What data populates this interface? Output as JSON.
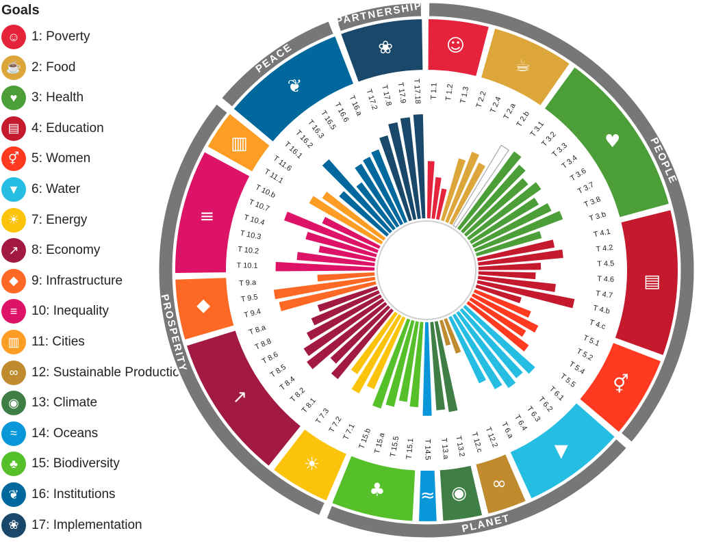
{
  "legend": {
    "title": "Goals",
    "goals": [
      {
        "label": "1: Poverty",
        "color": "#e5243b",
        "icon": "people-icon"
      },
      {
        "label": "2: Food",
        "color": "#dda63a",
        "icon": "bowl-icon"
      },
      {
        "label": "3: Health",
        "color": "#4c9f38",
        "icon": "heartbeat-icon"
      },
      {
        "label": "4: Education",
        "color": "#c5192d",
        "icon": "book-icon"
      },
      {
        "label": "5: Women",
        "color": "#ff3a21",
        "icon": "gender-icon"
      },
      {
        "label": "6: Water",
        "color": "#26bde2",
        "icon": "water-drop-icon"
      },
      {
        "label": "7: Energy",
        "color": "#fcc30b",
        "icon": "sun-icon"
      },
      {
        "label": "8: Economy",
        "color": "#a21942",
        "icon": "growth-chart-icon"
      },
      {
        "label": "9: Infrastructure",
        "color": "#fd6925",
        "icon": "cubes-icon"
      },
      {
        "label": "10: Inequality",
        "color": "#dd1367",
        "icon": "equal-icon"
      },
      {
        "label": "11: Cities",
        "color": "#fd9d24",
        "icon": "buildings-icon"
      },
      {
        "label": "12: Sustainable Production",
        "color": "#bf8b2e",
        "icon": "infinity-icon"
      },
      {
        "label": "13: Climate",
        "color": "#3f7e44",
        "icon": "eye-globe-icon"
      },
      {
        "label": "14: Oceans",
        "color": "#0a97d9",
        "icon": "fish-icon"
      },
      {
        "label": "15: Biodiversity",
        "color": "#56c02b",
        "icon": "tree-icon"
      },
      {
        "label": "16: Institutions",
        "color": "#00689d",
        "icon": "dove-icon"
      },
      {
        "label": "17: Implementation",
        "color": "#19486a",
        "icon": "flower-icon"
      }
    ]
  },
  "chart_data": {
    "type": "radial-bar",
    "title": "",
    "pillars": [
      {
        "label": "PEOPLE",
        "goals": [
          1,
          2,
          3,
          4,
          5
        ]
      },
      {
        "label": "PLANET",
        "goals": [
          6,
          12,
          13,
          14,
          15
        ]
      },
      {
        "label": "PROSPERITY",
        "goals": [
          7,
          8,
          9,
          10,
          11
        ]
      },
      {
        "label": "PEACE",
        "goals": [
          16
        ]
      },
      {
        "label": "PARTNERSHIP",
        "goals": [
          17
        ]
      }
    ],
    "targets": [
      {
        "label": "T 1.1",
        "goal": 1,
        "value": 0.55
      },
      {
        "label": "T 1.2",
        "goal": 1,
        "value": 0.4
      },
      {
        "label": "T 1.3",
        "goal": 1,
        "value": 0.3
      },
      {
        "label": "T 2.2",
        "goal": 2,
        "value": 0.62
      },
      {
        "label": "T 2.4",
        "goal": 2,
        "value": 0.72
      },
      {
        "label": "T 2.a",
        "goal": 2,
        "value": 0.65
      },
      {
        "label": "T 2.b",
        "goal": 2,
        "value": 0.9,
        "hollow": true
      },
      {
        "label": "T 3.1",
        "goal": 3,
        "value": 0.92
      },
      {
        "label": "T 3.2",
        "goal": 3,
        "value": 0.85
      },
      {
        "label": "T 3.3",
        "goal": 3,
        "value": 0.78
      },
      {
        "label": "T 3.4",
        "goal": 3,
        "value": 0.85
      },
      {
        "label": "T 3.6",
        "goal": 3,
        "value": 0.75
      },
      {
        "label": "T 3.7",
        "goal": 3,
        "value": 0.83
      },
      {
        "label": "T 3.8",
        "goal": 3,
        "value": 0.9
      },
      {
        "label": "T 3.b",
        "goal": 3,
        "value": 0.65
      },
      {
        "label": "T 4.1",
        "goal": 4,
        "value": 0.75
      },
      {
        "label": "T 4.2",
        "goal": 4,
        "value": 0.82
      },
      {
        "label": "T 4.5",
        "goal": 4,
        "value": 0.6
      },
      {
        "label": "T 4.6",
        "goal": 4,
        "value": 0.55
      },
      {
        "label": "T 4.7",
        "goal": 4,
        "value": 0.75
      },
      {
        "label": "T 4.b",
        "goal": 4,
        "value": 0.95
      },
      {
        "label": "T 4.c",
        "goal": 4,
        "value": 0.45
      },
      {
        "label": "T 5.1",
        "goal": 5,
        "value": 0.58
      },
      {
        "label": "T 5.2",
        "goal": 5,
        "value": 0.7
      },
      {
        "label": "T 5.4",
        "goal": 5,
        "value": 0.62
      },
      {
        "label": "T 5.5",
        "goal": 5,
        "value": 0.72
      },
      {
        "label": "T 6.1",
        "goal": 6,
        "value": 0.9
      },
      {
        "label": "T 6.2",
        "goal": 6,
        "value": 0.85
      },
      {
        "label": "T 6.3",
        "goal": 6,
        "value": 0.88
      },
      {
        "label": "T 6.4",
        "goal": 6,
        "value": 0.82
      },
      {
        "label": "T 6.a",
        "goal": 6,
        "value": 0.7
      },
      {
        "label": "T 12.2",
        "goal": 12,
        "value": 0.35
      },
      {
        "label": "T 12.c",
        "goal": 12,
        "value": 0.25
      },
      {
        "label": "T 13.2",
        "goal": 13,
        "value": 0.88
      },
      {
        "label": "T 13.a",
        "goal": 13,
        "value": 0.85
      },
      {
        "label": "T 14.5",
        "goal": 14,
        "value": 0.9
      },
      {
        "label": "T 15.1",
        "goal": 15,
        "value": 0.82
      },
      {
        "label": "T 15.5",
        "goal": 15,
        "value": 0.78
      },
      {
        "label": "T 15.a",
        "goal": 15,
        "value": 0.85
      },
      {
        "label": "T 15.b",
        "goal": 15,
        "value": 0.9
      },
      {
        "label": "T 7.1",
        "goal": 7,
        "value": 0.75
      },
      {
        "label": "T 7.2",
        "goal": 7,
        "value": 0.85
      },
      {
        "label": "T 7.3",
        "goal": 7,
        "value": 0.7
      },
      {
        "label": "T 8.1",
        "goal": 8,
        "value": 0.85
      },
      {
        "label": "T 8.2",
        "goal": 8,
        "value": 0.75
      },
      {
        "label": "T 8.4",
        "goal": 8,
        "value": 0.95
      },
      {
        "label": "T 8.5",
        "goal": 8,
        "value": 0.9
      },
      {
        "label": "T 8.6",
        "goal": 8,
        "value": 0.8
      },
      {
        "label": "T 8.8",
        "goal": 8,
        "value": 0.7
      },
      {
        "label": "T 8.a",
        "goal": 8,
        "value": 0.6
      },
      {
        "label": "T 9.4",
        "goal": 9,
        "value": 0.95
      },
      {
        "label": "T 9.5",
        "goal": 9,
        "value": 0.98
      },
      {
        "label": "T 9.a",
        "goal": 9,
        "value": 0.55
      },
      {
        "label": "T 10.1",
        "goal": 10,
        "value": 0.95
      },
      {
        "label": "T 10.2",
        "goal": 10,
        "value": 0.75
      },
      {
        "label": "T 10.3",
        "goal": 10,
        "value": 0.55
      },
      {
        "label": "T 10.4",
        "goal": 10,
        "value": 0.7
      },
      {
        "label": "T 10.7",
        "goal": 10,
        "value": 0.95
      },
      {
        "label": "T 10.b",
        "goal": 10,
        "value": 0.6
      },
      {
        "label": "T 11.1",
        "goal": 11,
        "value": 0.8
      },
      {
        "label": "T 11.6",
        "goal": 11,
        "value": 0.72
      },
      {
        "label": "T 16.1",
        "goal": 16,
        "value": 0.6
      },
      {
        "label": "T 16.2",
        "goal": 16,
        "value": 0.92
      },
      {
        "label": "T 16.3",
        "goal": 16,
        "value": 0.55
      },
      {
        "label": "T 16.5",
        "goal": 16,
        "value": 0.7
      },
      {
        "label": "T 16.6",
        "goal": 16,
        "value": 0.72
      },
      {
        "label": "T 16.a",
        "goal": 16,
        "value": 0.75
      },
      {
        "label": "T 17.2",
        "goal": 17,
        "value": 0.85
      },
      {
        "label": "T 17.8",
        "goal": 17,
        "value": 0.95
      },
      {
        "label": "T 17.9",
        "goal": 17,
        "value": 0.98
      },
      {
        "label": "T 17.18",
        "goal": 17,
        "value": 1.0
      }
    ]
  }
}
